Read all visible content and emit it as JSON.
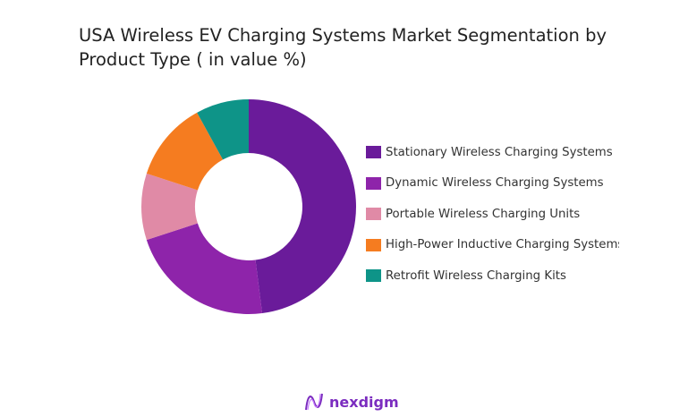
{
  "chart_data": {
    "type": "pie",
    "donut": true,
    "title": "USA Wireless EV Charging Systems Market Segmentation by Product Type ( in value %)",
    "categories": [
      "Stationary Wireless Charging Systems",
      "Dynamic Wireless Charging Systems",
      "Portable Wireless Charging Units",
      "High-Power Inductive Charging Systems",
      "Retrofit Wireless Charging Kits"
    ],
    "values": [
      48,
      22,
      10,
      12,
      8
    ],
    "colors": [
      "#6a1b9a",
      "#8e24aa",
      "#e08aa6",
      "#f57c20",
      "#0e9488"
    ],
    "legend_position": "right"
  },
  "brand": {
    "name": "nexdigm"
  }
}
